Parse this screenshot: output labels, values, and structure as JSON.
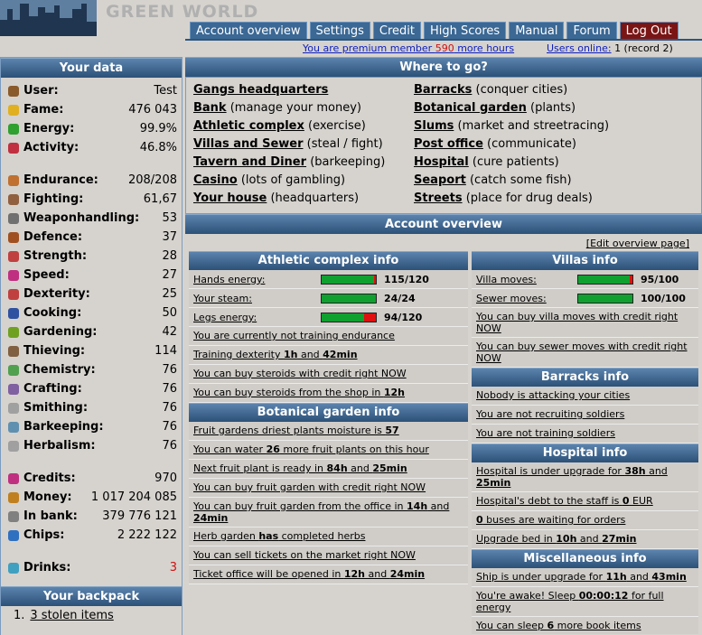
{
  "header": {
    "logo": "GREEN WORLD",
    "nav": [
      "Account overview",
      "Settings",
      "Credit",
      "High Scores",
      "Manual",
      "Forum",
      "Log Out"
    ],
    "premium": [
      "You are premium member ",
      "590",
      " more hours"
    ],
    "online_link": "Users online:",
    "online": "1 (record 2)"
  },
  "your_data": {
    "title": "Your data",
    "groups": [
      [
        {
          "label": "User:",
          "value": "Test"
        },
        {
          "label": "Fame:",
          "value": "476 043"
        },
        {
          "label": "Energy:",
          "value": "99.9%"
        },
        {
          "label": "Activity:",
          "value": "46.8%"
        }
      ],
      [
        {
          "label": "Endurance:",
          "value": "208/208"
        },
        {
          "label": "Fighting:",
          "value": "61,67"
        },
        {
          "label": "Weaponhandling:",
          "value": "53"
        },
        {
          "label": "Defence:",
          "value": "37"
        },
        {
          "label": "Strength:",
          "value": "28"
        },
        {
          "label": "Speed:",
          "value": "27"
        },
        {
          "label": "Dexterity:",
          "value": "25"
        },
        {
          "label": "Cooking:",
          "value": "50"
        },
        {
          "label": "Gardening:",
          "value": "42"
        },
        {
          "label": "Thieving:",
          "value": "114"
        },
        {
          "label": "Chemistry:",
          "value": "76"
        },
        {
          "label": "Crafting:",
          "value": "76"
        },
        {
          "label": "Smithing:",
          "value": "76"
        },
        {
          "label": "Barkeeping:",
          "value": "76"
        },
        {
          "label": "Herbalism:",
          "value": "76"
        }
      ],
      [
        {
          "label": "Credits:",
          "value": "970"
        },
        {
          "label": "Money:",
          "value": "1 017 204 085"
        },
        {
          "label": "In bank:",
          "value": "379 776 121"
        },
        {
          "label": "Chips:",
          "value": "2 222 122"
        }
      ],
      [
        {
          "label": "Drinks:",
          "value": "3"
        }
      ]
    ]
  },
  "backpack": {
    "title": "Your backpack",
    "items": [
      {
        "num": "1.",
        "text": "3 stolen items"
      }
    ]
  },
  "where_to_go": {
    "title": "Where to go?",
    "columns": [
      [
        {
          "link": "Gangs headquarters",
          "desc": ""
        },
        {
          "link": "Bank",
          "desc": "(manage your money)"
        },
        {
          "link": "Athletic complex",
          "desc": "(exercise)"
        },
        {
          "link": "Villas and Sewer",
          "desc": "(steal / fight)"
        },
        {
          "link": "Tavern and Diner",
          "desc": "(barkeeping)"
        },
        {
          "link": "Casino",
          "desc": "(lots of gambling)"
        },
        {
          "link": "Your house",
          "desc": "(headquarters)"
        }
      ],
      [
        {
          "link": "Barracks",
          "desc": "(conquer cities)"
        },
        {
          "link": "Botanical garden",
          "desc": "(plants)"
        },
        {
          "link": "Slums",
          "desc": "(market and streetracing)"
        },
        {
          "link": "Post office",
          "desc": "(communicate)"
        },
        {
          "link": "Hospital",
          "desc": "(cure patients)"
        },
        {
          "link": "Seaport",
          "desc": "(catch some fish)"
        },
        {
          "link": "Streets",
          "desc": "(place for drug deals)"
        }
      ]
    ]
  },
  "account_overview": {
    "title": "Account overview",
    "edit": "[Edit overview page]",
    "columns": [
      [
        {
          "title": "Athletic complex info",
          "meters": [
            {
              "label": "Hands energy:",
              "value": 115,
              "max": 120,
              "value_label": "115/120"
            },
            {
              "label": "Your steam:",
              "value": 24,
              "max": 24,
              "value_label": "24/24"
            },
            {
              "label": "Legs energy:",
              "value": 94,
              "max": 120,
              "value_label": "94/120"
            }
          ],
          "lines": [
            [
              "You are currently not training endurance"
            ],
            [
              "Training dexterity ",
              "1h",
              " and ",
              "42min"
            ],
            [
              "You can buy steroids with credit right NOW"
            ],
            [
              "You can buy steroids from the shop in ",
              "12h"
            ]
          ]
        },
        {
          "title": "Botanical garden info",
          "meters": [],
          "lines": [
            [
              "Fruit gardens driest plants moisture is ",
              "57"
            ],
            [
              "You can water ",
              "26",
              " more fruit plants on this hour"
            ],
            [
              "Next fruit plant is ready in ",
              "84h",
              " and ",
              "25min"
            ],
            [
              "You can buy fruit garden with credit right NOW"
            ],
            [
              "You can buy fruit garden from the office in ",
              "14h",
              " and ",
              "24min"
            ],
            [
              "Herb garden ",
              "has",
              " completed herbs"
            ],
            [
              "You can sell tickets on the market right NOW"
            ],
            [
              "Ticket office will be opened in ",
              "12h",
              " and ",
              "24min"
            ]
          ]
        }
      ],
      [
        {
          "title": "Villas info",
          "meters": [
            {
              "label": "Villa moves:",
              "value": 95,
              "max": 100,
              "value_label": "95/100"
            },
            {
              "label": "Sewer moves:",
              "value": 100,
              "max": 100,
              "value_label": "100/100"
            }
          ],
          "lines": [
            [
              "You can buy villa moves with credit right NOW"
            ],
            [
              "You can buy sewer moves with credit right NOW"
            ]
          ]
        },
        {
          "title": "Barracks info",
          "meters": [],
          "lines": [
            [
              "Nobody is attacking your cities"
            ],
            [
              "You are not recruiting soldiers"
            ],
            [
              "You are not training soldiers"
            ]
          ]
        },
        {
          "title": "Hospital info",
          "meters": [],
          "lines": [
            [
              "Hospital is under upgrade for ",
              "38h",
              " and ",
              "25min"
            ],
            [
              "Hospital's debt to the staff is ",
              "0",
              " EUR"
            ],
            [
              "",
              "0",
              " buses are waiting for orders"
            ],
            [
              "Upgrade bed in ",
              "10h",
              " and ",
              "27min"
            ]
          ]
        },
        {
          "title": "Miscellaneous info",
          "meters": [],
          "lines": [
            [
              "Ship is under upgrade for ",
              "11h",
              " and ",
              "43min"
            ],
            [
              "You're awake! Sleep ",
              "00:00:12",
              " for full energy"
            ],
            [
              "You can sleep ",
              "6",
              " more book items"
            ]
          ]
        }
      ]
    ]
  }
}
